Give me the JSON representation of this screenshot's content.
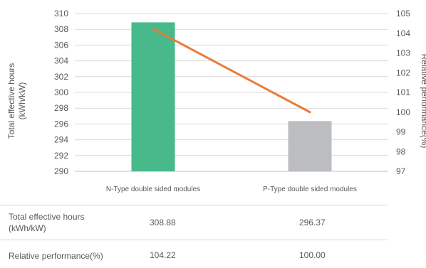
{
  "chart_data": {
    "type": "bar",
    "categories": [
      "N-Type double sided modules",
      "P-Type double sided modules"
    ],
    "series": [
      {
        "name": "Total effective hours (kWh/kW)",
        "type": "bar",
        "axis": "left",
        "values": [
          308.88,
          296.37
        ],
        "colors": [
          "#47b98a",
          "#bcbdc0"
        ]
      },
      {
        "name": "Relative performance(%)",
        "type": "line",
        "axis": "right",
        "values": [
          104.22,
          100.0
        ],
        "color": "#ea7c38"
      }
    ],
    "ylabel": "Total effective hours\n(kWh/kW)",
    "ylabel_right": "Relative performance(%)",
    "ylim": [
      290,
      310
    ],
    "yticks": [
      290,
      292,
      294,
      296,
      298,
      300,
      302,
      304,
      306,
      308,
      310
    ],
    "ylim_right": [
      97,
      105
    ],
    "yticks_right": [
      97,
      98,
      99,
      100,
      101,
      102,
      103,
      104,
      105
    ],
    "grid": true
  },
  "table": {
    "rows": [
      {
        "label": "Total effective hours\n(kWh/kW)",
        "values": [
          "308.88",
          "296.37"
        ]
      },
      {
        "label": "Relative performance(%)",
        "values": [
          "104.22",
          "100.00"
        ]
      }
    ]
  }
}
